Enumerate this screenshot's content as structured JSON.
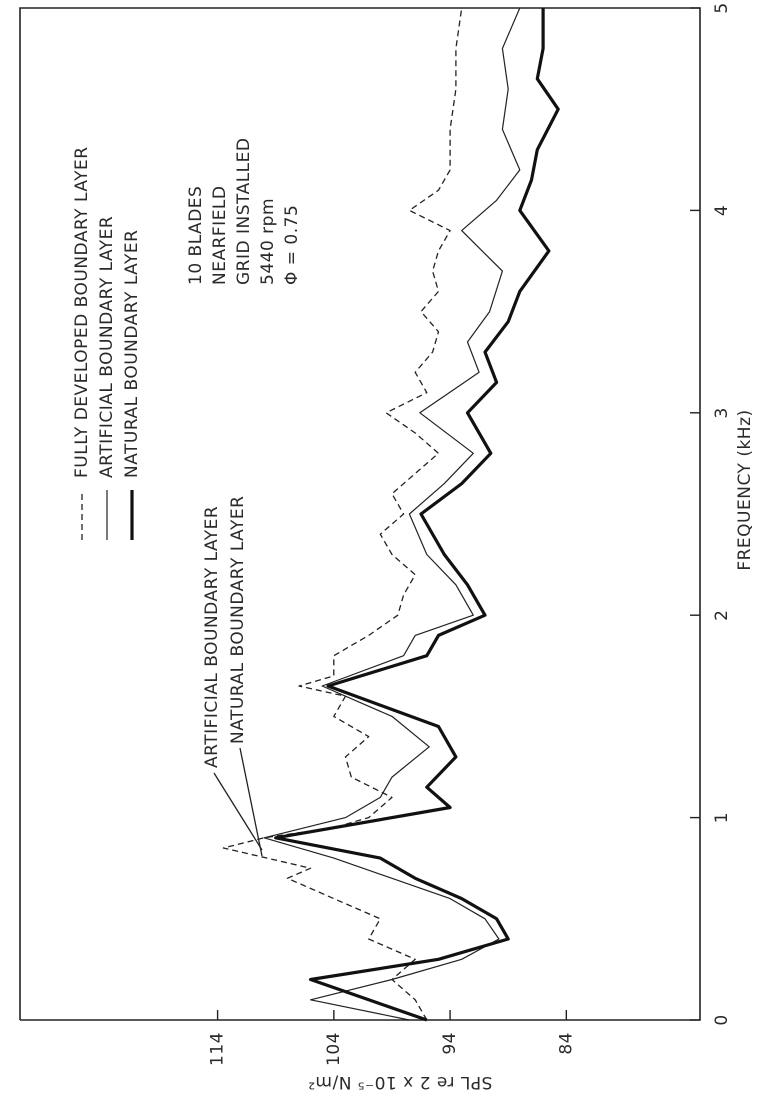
{
  "chart_data": {
    "type": "line",
    "x_label": "FREQUENCY (kHz)",
    "y_label": "SPL re 2 x 10⁻⁵ N/m²",
    "xlim": [
      0,
      5
    ],
    "xticks": [
      0,
      1,
      2,
      3,
      4,
      5
    ],
    "ylim": [
      72.5,
      131
    ],
    "yticks": [
      84,
      94,
      104,
      114
    ],
    "grid": false,
    "annotations": [
      "10 BLADES",
      "NEARFIELD",
      "GRID INSTALLED",
      "5440 rpm",
      "Φ = 0.75"
    ],
    "callouts": [
      "ARTIFICIAL BOUNDARY LAYER",
      "NATURAL BOUNDARY LAYER"
    ],
    "series": [
      {
        "name": "FULLY DEVELOPED BOUNDARY LAYER",
        "color": "#222",
        "style": "dashed",
        "x": [
          0,
          0.1,
          0.2,
          0.3,
          0.4,
          0.5,
          0.6,
          0.7,
          0.75,
          0.85,
          0.9,
          0.95,
          1.0,
          1.1,
          1.2,
          1.3,
          1.4,
          1.5,
          1.6,
          1.65,
          1.7,
          1.8,
          1.9,
          2.0,
          2.1,
          2.2,
          2.3,
          2.4,
          2.5,
          2.6,
          2.7,
          2.8,
          2.9,
          3.0,
          3.1,
          3.2,
          3.3,
          3.4,
          3.5,
          3.6,
          3.7,
          3.8,
          3.9,
          4.0,
          4.1,
          4.2,
          4.4,
          4.6,
          4.8,
          5.0
        ],
        "values": [
          96,
          97,
          99,
          97,
          101,
          100,
          104,
          108,
          106,
          113.5,
          110,
          104,
          101,
          99,
          102.5,
          103,
          101,
          104,
          103,
          107,
          104,
          104,
          101,
          98.5,
          98,
          97,
          99,
          100,
          98,
          99,
          97,
          95,
          97,
          99.5,
          96,
          97,
          95.5,
          95,
          96.5,
          95,
          95.5,
          95,
          94,
          97.5,
          95,
          94,
          94,
          93.5,
          93.5,
          93
        ]
      },
      {
        "name": "ARTIFICIAL BOUNDARY LAYER",
        "color": "#222",
        "style": "thin",
        "x": [
          0,
          0.1,
          0.2,
          0.3,
          0.4,
          0.5,
          0.6,
          0.7,
          0.8,
          0.9,
          1.0,
          1.1,
          1.2,
          1.35,
          1.5,
          1.65,
          1.8,
          1.9,
          2.0,
          2.15,
          2.3,
          2.5,
          2.65,
          2.8,
          3.0,
          3.2,
          3.35,
          3.5,
          3.7,
          3.9,
          4.05,
          4.2,
          4.4,
          4.6,
          4.8,
          5.0
        ],
        "values": [
          97.5,
          106,
          99,
          93,
          89.8,
          91,
          94,
          99,
          104,
          110,
          103,
          100,
          99,
          95.8,
          99,
          105,
          98,
          97,
          92,
          93.5,
          96,
          97.5,
          94.5,
          92,
          96.6,
          91.5,
          92.5,
          90.6,
          89.5,
          93,
          90,
          88,
          89.5,
          89,
          89.5,
          88
        ]
      },
      {
        "name": "NATURAL BOUNDARY LAYER",
        "color": "#111",
        "style": "thick",
        "x": [
          0,
          0.1,
          0.2,
          0.3,
          0.4,
          0.5,
          0.6,
          0.7,
          0.8,
          0.9,
          1.05,
          1.15,
          1.3,
          1.45,
          1.65,
          1.8,
          1.9,
          2.0,
          2.15,
          2.3,
          2.5,
          2.65,
          2.8,
          3.0,
          3.15,
          3.3,
          3.45,
          3.6,
          3.8,
          4.0,
          4.15,
          4.3,
          4.5,
          4.65,
          4.8,
          5.0
        ],
        "values": [
          96,
          101,
          106,
          95,
          89,
          90,
          93,
          97,
          100,
          109,
          94,
          96,
          93.5,
          95,
          104.5,
          96,
          95,
          91,
          92.5,
          94.5,
          96.5,
          93,
          90.5,
          92.5,
          90,
          91,
          89,
          88,
          85.5,
          88,
          87,
          86.5,
          84.7,
          86.5,
          86,
          86
        ]
      }
    ]
  }
}
